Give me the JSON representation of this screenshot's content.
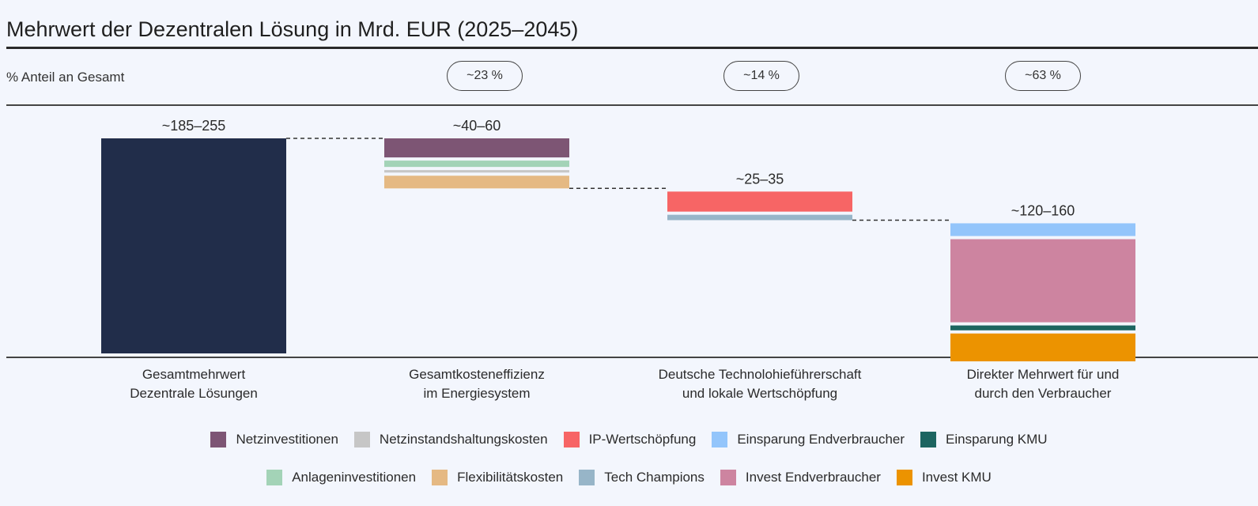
{
  "header": {
    "title": "Mehrwert der Dezentralen Lösung in Mrd. EUR (2025–2045)",
    "share_label": "% Anteil an Gesamt",
    "shares": [
      "~23 %",
      "~14 %",
      "~63 %"
    ]
  },
  "chart_data": {
    "type": "bar",
    "subtype": "waterfall-stacked",
    "title": "Mehrwert der Dezentralen Lösung in Mrd. EUR (2025–2045)",
    "xlabel": "",
    "ylabel": "Mrd. EUR",
    "ylim": [
      0,
      220
    ],
    "grid": false,
    "legend_position": "bottom",
    "categories": [
      "Gesamtmehrwert\nDezentrale Lösungen",
      "Gesamtkosteneffizienz\nim Energiesystem",
      "Deutsche Technolohieführerschaft\nund lokale Wertschöpfung",
      "Direkter Mehrwert für und\ndurch den Verbraucher"
    ],
    "category_lines": [
      [
        "Gesamtmehrwert",
        "Dezentrale Lösungen"
      ],
      [
        "Gesamtkosteneffizienz",
        "im Energiesystem"
      ],
      [
        "Deutsche Technolohieführerschaft",
        "und lokale Wertschöpfung"
      ],
      [
        "Direkter Mehrwert für und",
        "durch den Verbraucher"
      ]
    ],
    "data_labels": [
      "~185–255",
      "~40–60",
      "~25–35",
      "~120–160"
    ],
    "share_labels": [
      "",
      "~23 %",
      "~14 %",
      "~63 %"
    ],
    "bars": [
      {
        "category_index": 0,
        "segments": [
          {
            "series": "Gesamt",
            "value": 220
          }
        ]
      },
      {
        "category_index": 1,
        "segments": [
          {
            "series": "Netzinvestitionen",
            "value": 19.5
          },
          {
            "series": "Anlageninvestitionen",
            "value": 6.5
          },
          {
            "series": "Netzinstandshaltungskosten",
            "value": 2.5
          },
          {
            "series": "Flexibilitätskosten",
            "value": 13
          }
        ]
      },
      {
        "category_index": 2,
        "segments": [
          {
            "series": "IP-Wertschöpfung",
            "value": 20.5
          },
          {
            "series": "Tech Champions",
            "value": 5.5
          }
        ]
      },
      {
        "category_index": 3,
        "segments": [
          {
            "series": "Einsparung Endverbraucher",
            "value": 13
          },
          {
            "series": "Invest Endverbraucher",
            "value": 85
          },
          {
            "series": "Einsparung KMU",
            "value": 5
          },
          {
            "series": "Invest KMU",
            "value": 28.5
          }
        ]
      }
    ],
    "total_color": "#212d4a",
    "legend": [
      [
        {
          "name": "Netzinvestitionen",
          "color": "#7d5574"
        },
        {
          "name": "Netzinstandshaltungskosten",
          "color": "#c6c6c6"
        },
        {
          "name": "IP-Wertschöpfung",
          "color": "#f76565"
        },
        {
          "name": "Einsparung Endverbraucher",
          "color": "#93c5fb"
        },
        {
          "name": "Einsparung KMU",
          "color": "#1d6560"
        }
      ],
      [
        {
          "name": "Anlageninvestitionen",
          "color": "#a3d3b7"
        },
        {
          "name": "Flexibilitätskosten",
          "color": "#e5b983"
        },
        {
          "name": "Tech Champions",
          "color": "#97b5c8"
        },
        {
          "name": "Invest Endverbraucher",
          "color": "#cd84a0"
        },
        {
          "name": "Invest KMU",
          "color": "#ec9300"
        }
      ]
    ]
  }
}
